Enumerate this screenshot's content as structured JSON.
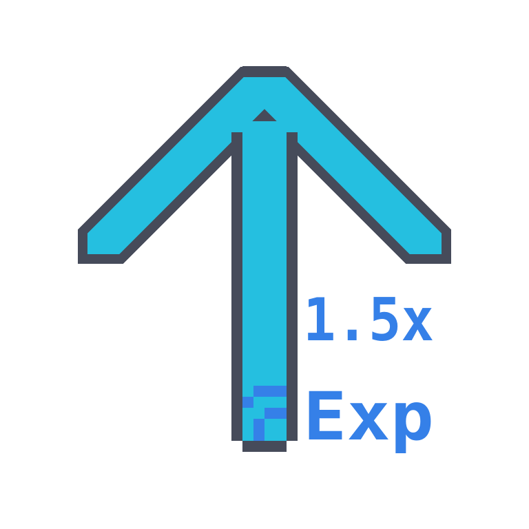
{
  "icon": {
    "multiplier": "1.5x",
    "label": "Exp"
  }
}
